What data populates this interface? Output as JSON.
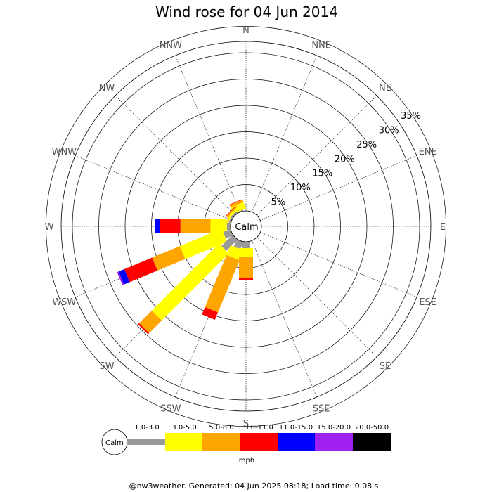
{
  "chart_data": {
    "type": "wind-rose",
    "title": "Wind rose for 04 Jun 2014",
    "directions": [
      "N",
      "NNE",
      "NE",
      "ENE",
      "E",
      "ESE",
      "SE",
      "SSE",
      "S",
      "SSW",
      "SW",
      "WSW",
      "W",
      "WNW",
      "NW",
      "NNW"
    ],
    "rings": [
      5,
      10,
      15,
      20,
      25,
      30,
      35
    ],
    "ring_labels": [
      "5%",
      "10%",
      "15%",
      "20%",
      "25%",
      "30%",
      "35%"
    ],
    "calm_label": "Calm",
    "unit_label": "mph",
    "speed_bins": [
      {
        "range": "",
        "color": "#999999"
      },
      {
        "range": "1.0-3.0",
        "color": "#ffff00"
      },
      {
        "range": "3.0-5.0",
        "color": "#ffa500"
      },
      {
        "range": "5.0-8.0",
        "color": "#ff0000"
      },
      {
        "range": "8.0-11.0",
        "color": "#0000ff"
      },
      {
        "range": "11.0-15.0",
        "color": "#a020f0"
      },
      {
        "range": "15.0-20.0",
        "color": "#000000"
      },
      {
        "range": "20.0-50.0",
        "color": "#ffffff"
      }
    ],
    "petals": [
      {
        "direction": "NNW",
        "cumulative": [
          0.2,
          1.5,
          2.0,
          2.1
        ]
      },
      {
        "direction": "NW",
        "cumulative": [
          0.4,
          0.8,
          1.1,
          1.2
        ]
      },
      {
        "direction": "WNW",
        "cumulative": [
          0.4,
          0.7,
          0.8
        ]
      },
      {
        "direction": "W",
        "cumulative": [
          0.7,
          3.8,
          9.5,
          13.4,
          14.4
        ]
      },
      {
        "direction": "WSW",
        "cumulative": [
          1.5,
          10.1,
          15.8,
          21.5,
          22.7,
          23.0
        ]
      },
      {
        "direction": "SW",
        "cumulative": [
          3.0,
          21.0,
          24.4,
          24.7
        ]
      },
      {
        "direction": "SSW",
        "cumulative": [
          1.5,
          3.5,
          14.2,
          15.7
        ]
      },
      {
        "direction": "S",
        "cumulative": [
          1.2,
          2.8,
          6.9,
          7.3
        ]
      }
    ]
  },
  "legend": {
    "calm_label": "Calm",
    "labels": [
      "1.0-3.0",
      "3.0-5.0",
      "5.0-8.0",
      "8.0-11.0",
      "11.0-15.0",
      "15.0-20.0",
      "20.0-50.0"
    ],
    "unit": "mph"
  },
  "footer": "@nw3weather. Generated: 04 Jun 2025 08:18; Load time: 0.08 s"
}
